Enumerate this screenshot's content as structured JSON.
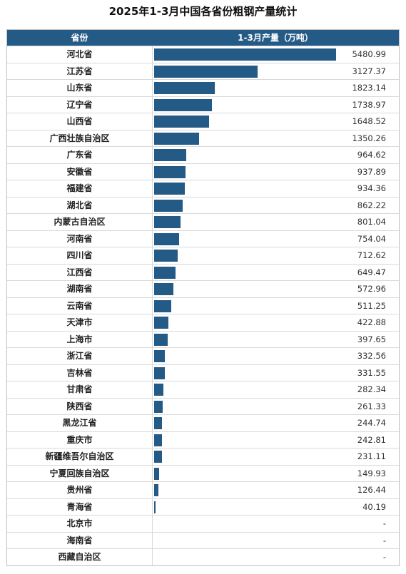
{
  "chart_data": {
    "type": "bar",
    "orientation": "horizontal",
    "title": "2025年1-3月中国各省份粗钢产量统计",
    "header": {
      "category": "省份",
      "value": "1-3月产量（万吨）"
    },
    "categories": [
      "河北省",
      "江苏省",
      "山东省",
      "辽宁省",
      "山西省",
      "广西壮族自治区",
      "广东省",
      "安徽省",
      "福建省",
      "湖北省",
      "内蒙古自治区",
      "河南省",
      "四川省",
      "江西省",
      "湖南省",
      "云南省",
      "天津市",
      "上海市",
      "浙江省",
      "吉林省",
      "甘肃省",
      "陕西省",
      "黑龙江省",
      "重庆市",
      "新疆维吾尔自治区",
      "宁夏回族自治区",
      "贵州省",
      "青海省",
      "北京市",
      "海南省",
      "西藏自治区"
    ],
    "values": [
      5480.99,
      3127.37,
      1823.14,
      1738.97,
      1648.52,
      1350.26,
      964.62,
      937.89,
      934.36,
      862.22,
      801.04,
      754.04,
      712.62,
      649.47,
      572.96,
      511.25,
      422.88,
      397.65,
      332.56,
      331.55,
      282.34,
      261.33,
      244.74,
      242.81,
      231.11,
      149.93,
      126.44,
      40.19,
      null,
      null,
      null
    ],
    "labels": [
      "5480.99",
      "3127.37",
      "1823.14",
      "1738.97",
      "1648.52",
      "1350.26",
      "964.62",
      "937.89",
      "934.36",
      "862.22",
      "801.04",
      "754.04",
      "712.62",
      "649.47",
      "572.96",
      "511.25",
      "422.88",
      "397.65",
      "332.56",
      "331.55",
      "282.34",
      "261.33",
      "244.74",
      "242.81",
      "231.11",
      "149.93",
      "126.44",
      "40.19",
      "-",
      "-",
      "-"
    ],
    "bar_color": "#245a86",
    "xlim": [
      0,
      5480.99
    ]
  }
}
